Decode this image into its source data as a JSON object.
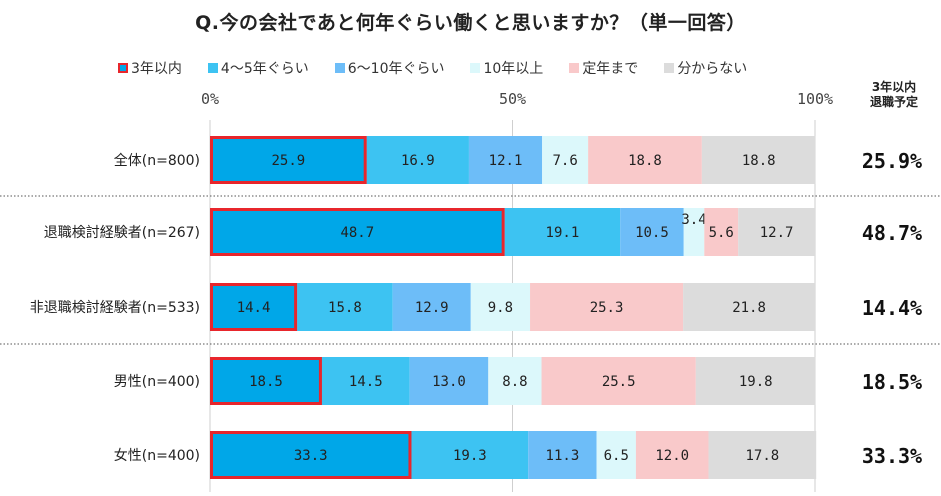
{
  "chart_data": {
    "type": "bar",
    "orientation": "horizontal",
    "stacked": true,
    "percent": true,
    "title": "Q.今の会社であと何年ぐらい働くと思いますか？（単一回答）",
    "categories": [
      "全体(n=800)",
      "退職検討経験者(n=267)",
      "非退職検討経験者(n=533)",
      "男性(n=400)",
      "女性(n=400)"
    ],
    "series": [
      {
        "name": "3年以内",
        "color": "#00a7e8",
        "values": [
          25.9,
          48.7,
          14.4,
          18.5,
          33.3
        ]
      },
      {
        "name": "4～5年ぐらい",
        "color": "#3dc3f2",
        "values": [
          16.9,
          19.1,
          15.8,
          14.5,
          19.3
        ]
      },
      {
        "name": "6～10年ぐらい",
        "color": "#6dbdf8",
        "values": [
          12.1,
          10.5,
          12.9,
          13.0,
          11.3
        ]
      },
      {
        "name": "10年以上",
        "color": "#dcf8fb",
        "values": [
          7.6,
          3.4,
          9.8,
          8.8,
          6.5
        ]
      },
      {
        "name": "定年まで",
        "color": "#f9c9ca",
        "values": [
          18.8,
          5.6,
          25.3,
          25.5,
          12.0
        ]
      },
      {
        "name": "分からない",
        "color": "#dcdcdc",
        "values": [
          18.8,
          12.7,
          21.8,
          19.8,
          17.8
        ]
      }
    ],
    "highlight_series": "3年以内",
    "highlight_color": "#e8262c",
    "xlim": [
      0,
      100
    ],
    "xticks": [
      "0%",
      "50%",
      "100%"
    ],
    "xtick_values": [
      0,
      50,
      100
    ],
    "grid": true,
    "legend": "top",
    "side_column": {
      "header_line1": "3年以内",
      "header_line2": "退職予定",
      "values": [
        "25.9%",
        "48.7%",
        "14.4%",
        "18.5%",
        "33.3%"
      ]
    },
    "group_separators_after": [
      0,
      2
    ]
  }
}
